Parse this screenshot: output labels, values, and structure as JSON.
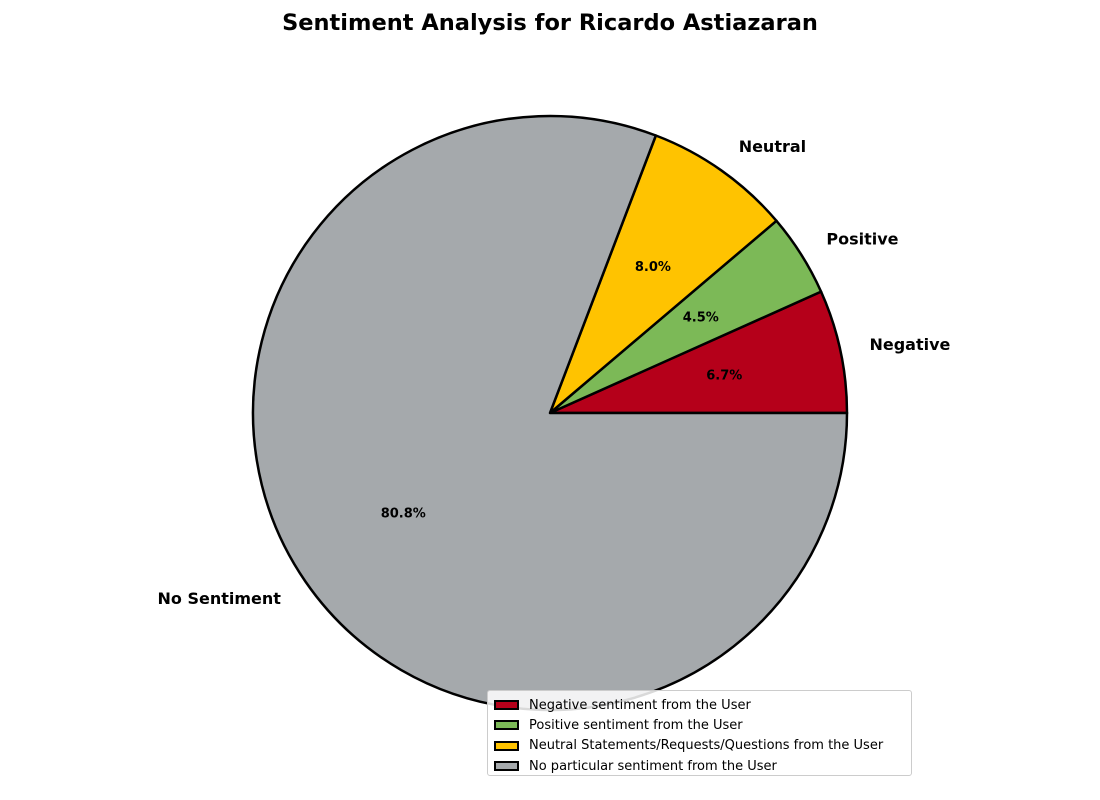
{
  "chart_data": {
    "type": "pie",
    "title": "Sentiment Analysis for Ricardo Astiazaran",
    "slices": [
      {
        "label": "Negative",
        "value": 6.7,
        "pct_label": "6.7%",
        "color": "#b5001a",
        "legend": "Negative sentiment from the User"
      },
      {
        "label": "Positive",
        "value": 4.5,
        "pct_label": "4.5%",
        "color": "#7cb957",
        "legend": "Positive sentiment from the User"
      },
      {
        "label": "Neutral",
        "value": 8.0,
        "pct_label": "8.0%",
        "color": "#ffc300",
        "legend": "Neutral Statements/Requests/Questions from the User"
      },
      {
        "label": "No Sentiment",
        "value": 80.8,
        "pct_label": "80.8%",
        "color": "#a5a9ac",
        "legend": "No particular sentiment from the User"
      }
    ],
    "legend_position": "lower-right",
    "start_angle_deg": 0,
    "direction": "counterclockwise"
  }
}
